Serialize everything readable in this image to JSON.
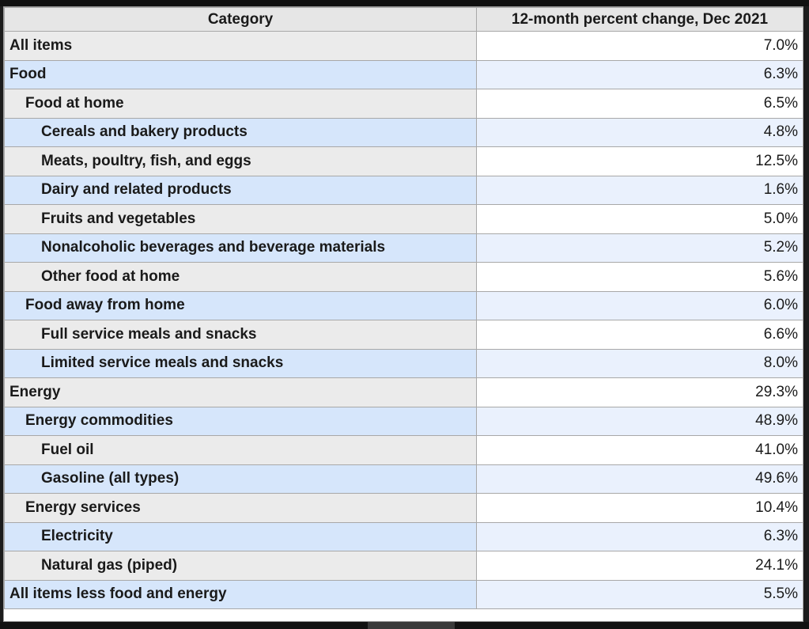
{
  "table": {
    "headers": {
      "category": "Category",
      "change": "12-month percent change, Dec 2021"
    },
    "rows": [
      {
        "label": "All items",
        "value": "7.0%",
        "level": 0
      },
      {
        "label": "Food",
        "value": "6.3%",
        "level": 0
      },
      {
        "label": "Food at home",
        "value": "6.5%",
        "level": 1
      },
      {
        "label": "Cereals and bakery products",
        "value": "4.8%",
        "level": 2
      },
      {
        "label": "Meats, poultry, fish, and eggs",
        "value": "12.5%",
        "level": 2
      },
      {
        "label": "Dairy and related products",
        "value": "1.6%",
        "level": 2
      },
      {
        "label": "Fruits and vegetables",
        "value": "5.0%",
        "level": 2
      },
      {
        "label": "Nonalcoholic beverages and beverage materials",
        "value": "5.2%",
        "level": 2
      },
      {
        "label": "Other food at home",
        "value": "5.6%",
        "level": 2
      },
      {
        "label": "Food away from home",
        "value": "6.0%",
        "level": 1
      },
      {
        "label": "Full service meals and snacks",
        "value": "6.6%",
        "level": 2
      },
      {
        "label": "Limited service meals and snacks",
        "value": "8.0%",
        "level": 2
      },
      {
        "label": "Energy",
        "value": "29.3%",
        "level": 0
      },
      {
        "label": "Energy commodities",
        "value": "48.9%",
        "level": 1
      },
      {
        "label": "Fuel oil",
        "value": "41.0%",
        "level": 2
      },
      {
        "label": "Gasoline (all types)",
        "value": "49.6%",
        "level": 2
      },
      {
        "label": "Energy services",
        "value": "10.4%",
        "level": 1
      },
      {
        "label": "Electricity",
        "value": "6.3%",
        "level": 2
      },
      {
        "label": "Natural gas (piped)",
        "value": "24.1%",
        "level": 2
      },
      {
        "label": "All items less food and energy",
        "value": "5.5%",
        "level": 0
      }
    ]
  },
  "colors": {
    "header_bg": "#e6e6e6",
    "row_gray": "#ebebeb",
    "row_blue": "#d6e6fb",
    "value_blue": "#eaf1fd",
    "border": "#a8a8a8"
  }
}
